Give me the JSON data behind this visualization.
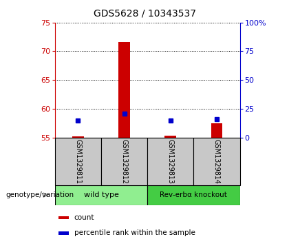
{
  "title": "GDS5628 / 10343537",
  "samples": [
    "GSM1329811",
    "GSM1329812",
    "GSM1329813",
    "GSM1329814"
  ],
  "count_values": [
    55.2,
    71.6,
    55.35,
    57.5
  ],
  "percentile_values": [
    58.0,
    59.2,
    58.0,
    58.2
  ],
  "left_ylim": [
    55,
    75
  ],
  "left_yticks": [
    55,
    60,
    65,
    70,
    75
  ],
  "right_ylim": [
    0,
    100
  ],
  "right_yticks": [
    0,
    25,
    50,
    75,
    100
  ],
  "right_yticklabels": [
    "0",
    "25",
    "50",
    "75",
    "100%"
  ],
  "bar_base": 55,
  "left_color": "#CC0000",
  "right_color": "#0000CC",
  "bg_color": "#C8C8C8",
  "plot_bg": "#FFFFFF",
  "group1_color": "#90EE90",
  "group2_color": "#44CC44",
  "legend_items": [
    {
      "color": "#CC0000",
      "label": "count"
    },
    {
      "color": "#0000CC",
      "label": "percentile rank within the sample"
    }
  ],
  "group1_label": "wild type",
  "group2_label": "Rev-erbα knockout",
  "genotype_label": "genotype/variation"
}
